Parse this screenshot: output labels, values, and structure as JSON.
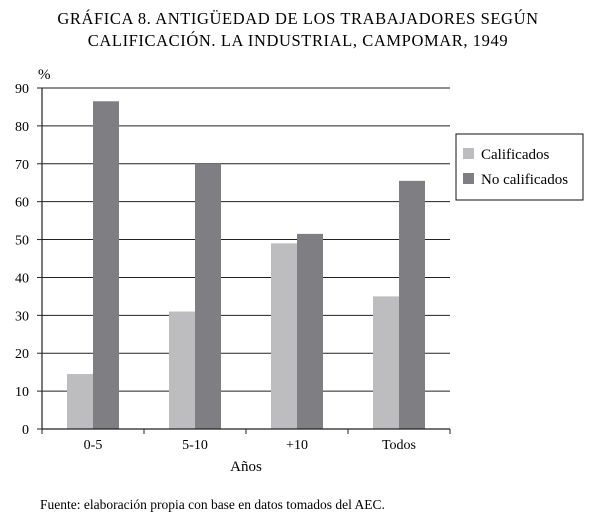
{
  "figure": {
    "title_line1": "GRÁFICA 8. ANTIGÜEDAD DE LOS TRABAJADORES SEGÚN",
    "title_line2": "CALIFICACIÓN. LA INDUSTRIAL, CAMPOMAR, 1949",
    "source_note": "Fuente: elaboración propia con base en datos tomados del AEC."
  },
  "chart_data": {
    "type": "bar",
    "title": "GRÁFICA 8. ANTIGÜEDAD DE LOS TRABAJADORES SEGÚN CALIFICACIÓN. LA INDUSTRIAL, CAMPOMAR, 1949",
    "xlabel": "Años",
    "ylabel": "%",
    "categories": [
      "0-5",
      "5-10",
      "+10",
      "Todos"
    ],
    "series": [
      {
        "name": "Calificados",
        "values": [
          14.5,
          31,
          49,
          35
        ],
        "color": "#bdbdbf"
      },
      {
        "name": "No calificados",
        "values": [
          86.5,
          70,
          51.5,
          65.5
        ],
        "color": "#7f7f83"
      }
    ],
    "ylim": [
      0,
      90
    ],
    "yticks": [
      "0",
      "10",
      "20",
      "30",
      "40",
      "50",
      "60",
      "70",
      "80",
      "90"
    ],
    "grid": true,
    "legend_position": "right"
  }
}
